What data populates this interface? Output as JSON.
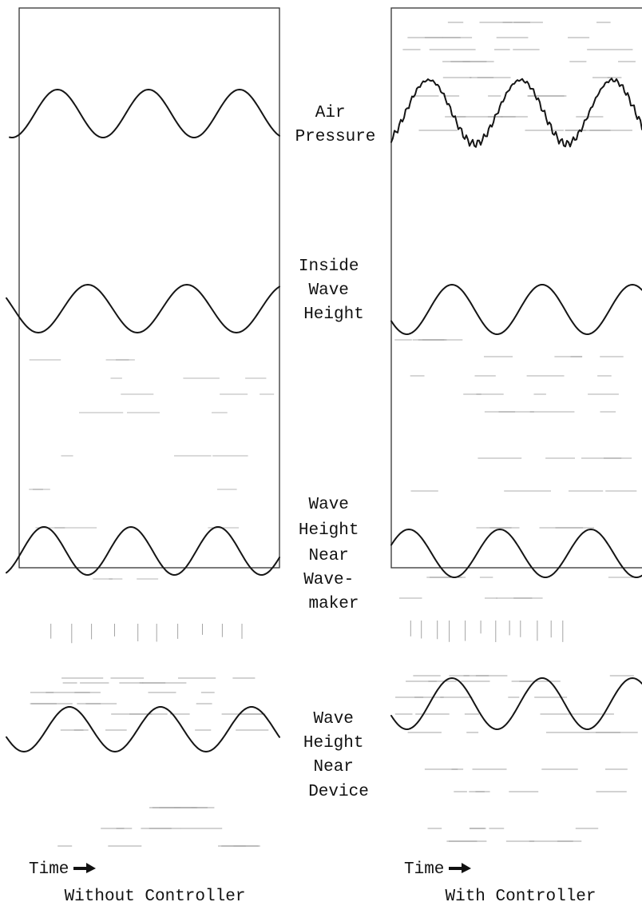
{
  "figure": {
    "panels": [
      {
        "id": "without",
        "time_label": "Time",
        "caption": "Without Controller"
      },
      {
        "id": "with",
        "time_label": "Time",
        "caption": "With Controller"
      }
    ],
    "row_labels": [
      {
        "id": "air_pressure",
        "lines": [
          "Air",
          "Pressure"
        ]
      },
      {
        "id": "inside_wave_height",
        "lines": [
          "Inside",
          "Wave",
          "Height"
        ]
      },
      {
        "id": "wave_height_near_wavemaker",
        "lines": [
          "Wave",
          "Height",
          "Near",
          "Wave-",
          "maker"
        ]
      },
      {
        "id": "wave_height_near_device",
        "lines": [
          "Wave",
          "Height",
          "Near",
          "Device"
        ]
      }
    ],
    "colors": {
      "trace": "#151515",
      "frame": "#333333",
      "background": "#ffffff"
    }
  }
}
